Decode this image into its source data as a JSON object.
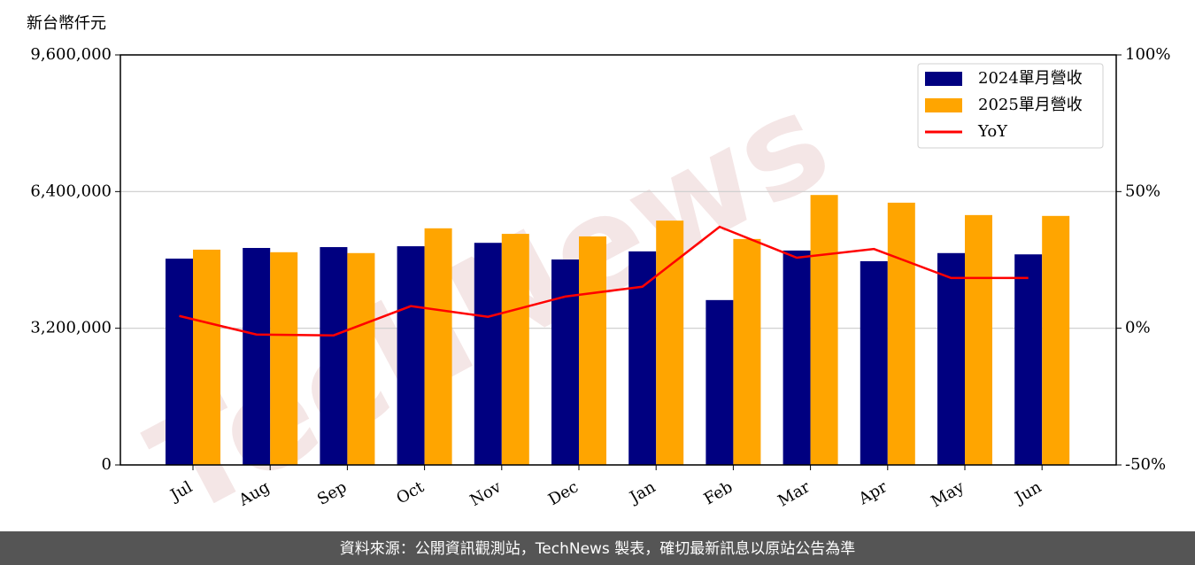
{
  "chart_data": {
    "type": "bar",
    "y_axis_label": "新台幣仟元",
    "categories": [
      "Jul",
      "Aug",
      "Sep",
      "Oct",
      "Nov",
      "Dec",
      "Jan",
      "Feb",
      "Mar",
      "Apr",
      "May",
      "Jun"
    ],
    "series": [
      {
        "name": "2024單月營收",
        "color": "#000080",
        "values": [
          4830000,
          5080000,
          5100000,
          5120000,
          5200000,
          4810000,
          5000000,
          3860000,
          5020000,
          4770000,
          4960000,
          4930000
        ]
      },
      {
        "name": "2025單月營收",
        "color": "#ffa500",
        "values": [
          5040000,
          4980000,
          4960000,
          5540000,
          5410000,
          5350000,
          5720000,
          5290000,
          6320000,
          6140000,
          5850000,
          5830000
        ]
      },
      {
        "name": "YoY",
        "color": "#ff0000",
        "type": "line",
        "axis": "y2",
        "values": [
          4.5,
          -2.3,
          -2.6,
          8.1,
          4.2,
          11.6,
          15.2,
          37.1,
          25.8,
          29.0,
          18.4,
          18.4
        ]
      }
    ],
    "ylim": [
      0,
      9600000
    ],
    "yticks": [
      0,
      {
        "value": 3200000,
        "label": "3,200,000"
      },
      {
        "value": 6400000,
        "label": "6,400,000"
      },
      {
        "value": 9600000,
        "label": "9,600,000"
      }
    ],
    "y2lim": [
      -50,
      100
    ],
    "y2ticks": [
      {
        "value": -50,
        "label": "-50%"
      },
      {
        "value": 0,
        "label": "0%"
      },
      {
        "value": 50,
        "label": "50%"
      },
      {
        "value": 100,
        "label": "100%"
      }
    ],
    "grid": true,
    "legend": "upper right",
    "watermark": "TechNews",
    "footer": "資料來源：公開資訊觀測站，TechNews 製表，確切最新訊息以原站公告為準"
  }
}
